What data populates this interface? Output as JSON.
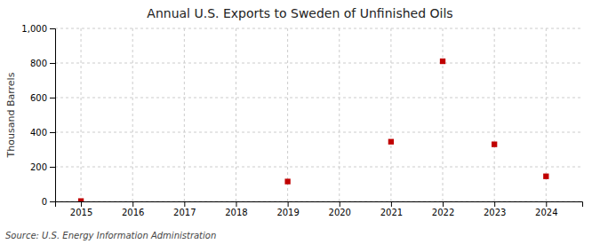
{
  "chart_data": {
    "type": "scatter",
    "title": "Annual U.S. Exports to Sweden of Unfinished Oils",
    "ylabel": "Thousand Barrels",
    "annotations": [
      "Source: U.S. Energy Information Administration"
    ],
    "x": [
      2015,
      2019,
      2021,
      2022,
      2023,
      2024
    ],
    "values": [
      2,
      115,
      345,
      810,
      330,
      145
    ],
    "color": "#c00000",
    "marker": "square",
    "xlim": [
      2014.5,
      2024.7
    ],
    "xticks": [
      2015,
      2016,
      2017,
      2018,
      2019,
      2020,
      2021,
      2022,
      2023,
      2024
    ],
    "ylim": [
      0,
      1000
    ],
    "yticks": [
      0,
      200,
      400,
      600,
      800,
      {
        "value": 1000,
        "label": "1,000"
      }
    ],
    "grid": true
  }
}
